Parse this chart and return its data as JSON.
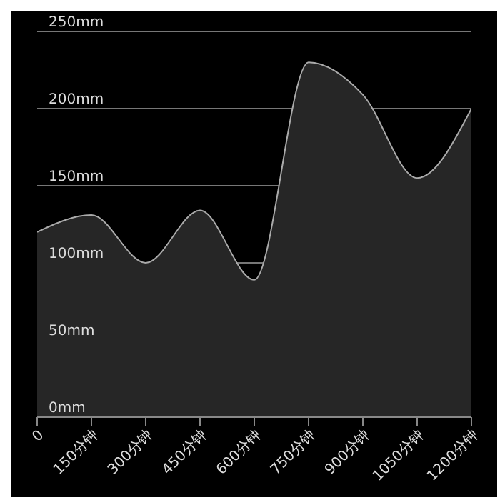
{
  "chart_data": {
    "type": "area",
    "x": [
      0,
      150,
      300,
      450,
      600,
      750,
      900,
      1050,
      1200
    ],
    "series": [
      {
        "color": "#aaaaaa",
        "values": [
          120,
          131,
          100,
          134,
          89,
          230,
          209,
          155,
          200
        ]
      }
    ],
    "xlim": [
      0,
      1200
    ],
    "xticks": [
      0,
      {
        "value": 150,
        "label": "150分钟"
      },
      {
        "value": 300,
        "label": "300分钟"
      },
      {
        "value": 450,
        "label": "450分钟"
      },
      {
        "value": 600,
        "label": "600分钟"
      },
      {
        "value": 750,
        "label": "750分钟"
      },
      {
        "value": 900,
        "label": "900分钟"
      },
      {
        "value": 1050,
        "label": "1050分钟"
      },
      {
        "value": 1200,
        "label": "1200分钟"
      }
    ],
    "ylim": [
      0,
      250
    ],
    "yticks": [
      {
        "value": 0,
        "label": "0mm"
      },
      {
        "value": 50,
        "label": "50mm"
      },
      {
        "value": 100,
        "label": "100mm"
      },
      {
        "value": 150,
        "label": "150mm"
      },
      {
        "value": 200,
        "label": "200mm"
      },
      {
        "value": 250,
        "label": "250mm"
      }
    ],
    "grid": "y"
  }
}
